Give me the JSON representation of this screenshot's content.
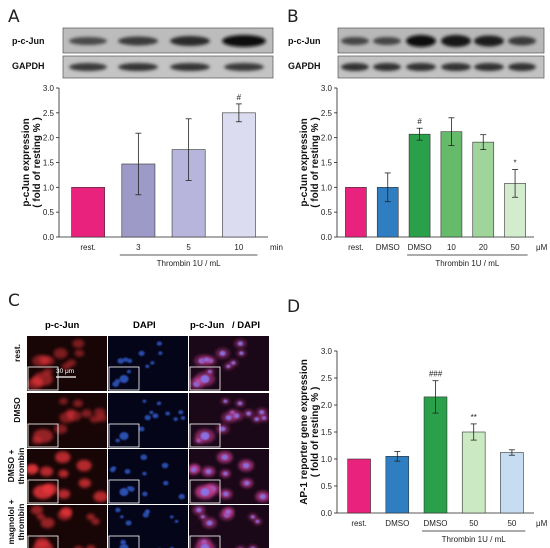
{
  "panels": {
    "A": {
      "letter": "A",
      "blot_labels": [
        "p-c-Jun",
        "GAPDH"
      ],
      "chart_data": {
        "type": "bar",
        "categories": [
          "rest.",
          "3",
          "5",
          "10"
        ],
        "values": [
          1.0,
          1.47,
          1.76,
          2.5
        ],
        "errors": [
          0,
          0.62,
          0.62,
          0.18
        ],
        "colors": [
          "#e8227d",
          "#9e9ac8",
          "#b7b5db",
          "#dcdcf0"
        ],
        "annotations": [
          "",
          "",
          "",
          "#"
        ],
        "ylabel_line1": "p-cJun expression",
        "ylabel_line2": "( fold of resting % )",
        "ylim": [
          0,
          3.0
        ],
        "yticks": [
          "0.0",
          "0.5",
          "1.0",
          "1.5",
          "2.0",
          "2.5",
          "3.0"
        ],
        "x_unit": "min",
        "group_label": "Thrombin 1U / mL"
      }
    },
    "B": {
      "letter": "B",
      "blot_labels": [
        "p-c-Jun",
        "GAPDH"
      ],
      "chart_data": {
        "type": "bar",
        "categories": [
          "rest.",
          "DMSO",
          "DMSO",
          "10",
          "20",
          "50"
        ],
        "values": [
          1.0,
          1.0,
          2.07,
          2.12,
          1.91,
          1.08
        ],
        "errors": [
          0,
          0.29,
          0.12,
          0.28,
          0.15,
          0.28
        ],
        "colors": [
          "#e8227d",
          "#2e7ec1",
          "#2aa04a",
          "#66bb6a",
          "#9fd59b",
          "#d3ecce"
        ],
        "annotations": [
          "",
          "",
          "#",
          "",
          "",
          "*"
        ],
        "ylabel_line1": "p-cJun expression",
        "ylabel_line2": "( fold of resting % )",
        "ylim": [
          0,
          3.0
        ],
        "yticks": [
          "0.0",
          "0.5",
          "1.0",
          "1.5",
          "2.0",
          "2.5",
          "3.0"
        ],
        "x_unit": "μM",
        "group_label": "Thrombin 1U / mL"
      }
    },
    "C": {
      "letter": "C",
      "column_labels": {
        "col1": "p-c-Jun",
        "col2": "DAPI",
        "col3a": "p-c-Jun",
        "col3b": "/ DAPI"
      },
      "row_labels": [
        "rest.",
        "DMSO",
        "DMSO +\nthrombin",
        "magnolol +\nthrombin"
      ],
      "scale_bar": "30 μm",
      "colors": {
        "red": "#e8343a",
        "blue": "#2a4fb0"
      }
    },
    "D": {
      "letter": "D",
      "chart_data": {
        "type": "bar",
        "categories": [
          "rest.",
          "DMSO",
          "DMSO",
          "50",
          "50"
        ],
        "values": [
          1.0,
          1.05,
          2.15,
          1.5,
          1.12
        ],
        "errors": [
          0,
          0.09,
          0.3,
          0.15,
          0.05
        ],
        "colors": [
          "#e8227d",
          "#2e7ec1",
          "#2aa04a",
          "#cbe9c3",
          "#c5dcf1"
        ],
        "annotations": [
          "",
          "",
          "###",
          "**",
          ""
        ],
        "ylabel_line1": "AP-1 reporter gene expression",
        "ylabel_line2": "( fold of resting % )",
        "ylim": [
          0,
          3.0
        ],
        "yticks": [
          "0.0",
          "0.5",
          "1.0",
          "1.5",
          "2.0",
          "2.5",
          "3.0"
        ],
        "x_unit": "μM",
        "group_label": "Thrombin 1U / mL"
      }
    }
  }
}
